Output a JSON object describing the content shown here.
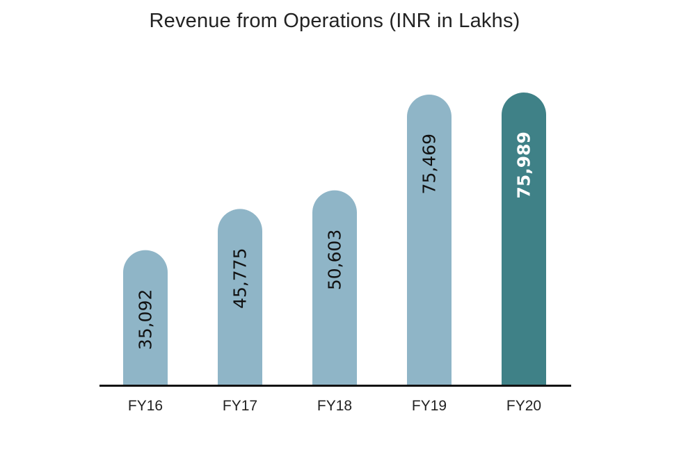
{
  "chart_data": {
    "type": "bar",
    "title": "Revenue from Operations (INR in Lakhs)",
    "xlabel": "",
    "ylabel": "",
    "categories": [
      "FY16",
      "FY17",
      "FY18",
      "FY19",
      "FY20"
    ],
    "values": [
      35092,
      45775,
      50603,
      75469,
      75989
    ],
    "value_labels": [
      "35,092",
      "45,775",
      "50,603",
      "75,469",
      "75,989"
    ],
    "ylim": [
      0,
      76000
    ],
    "grid": false,
    "legend": "none",
    "highlight_index": 4,
    "colors": {
      "bar": "#8fb5c7",
      "highlight_bar": "#3f8187",
      "label": "#111111",
      "highlight_label": "#ffffff",
      "axis": "#111111"
    }
  }
}
